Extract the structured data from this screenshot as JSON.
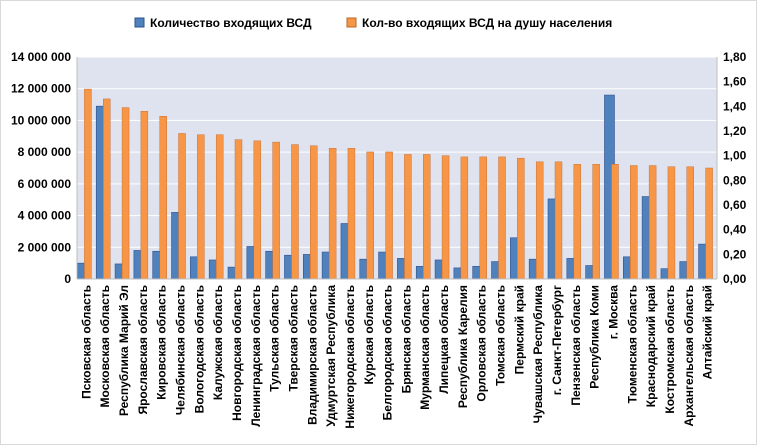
{
  "chart_data": {
    "type": "bar",
    "title": "",
    "xlabel": "",
    "ylabel": "",
    "ylim": [
      0,
      14000000
    ],
    "y2lim": [
      0,
      1.8
    ],
    "legend_position": "top",
    "grid": true,
    "y_ticks": [
      "0",
      "2 000 000",
      "4 000 000",
      "6 000 000",
      "8 000 000",
      "10 000 000",
      "12 000 000",
      "14 000 000"
    ],
    "y2_ticks": [
      "0,00",
      "0,20",
      "0,40",
      "0,60",
      "0,80",
      "1,00",
      "1,20",
      "1,40",
      "1,60",
      "1,80"
    ],
    "categories": [
      "Псковская область",
      "Московская область",
      "Республика Марий Эл",
      "Ярославская область",
      "Кировская область",
      "Челябинская область",
      "Вологодская область",
      "Калужская область",
      "Новгородская область",
      "Ленинградская область",
      "Тульская область",
      "Тверская область",
      "Владимирская область",
      "Удмуртская Республика",
      "Нижегородская область",
      "Курская область",
      "Белгородская область",
      "Брянская область",
      "Мурманская область",
      "Липецкая область",
      "Республика Карелия",
      "Орловская область",
      "Томская область",
      "Пермский край",
      "Чувашская Республика",
      "г. Санкт-Петербург",
      "Пензенская область",
      "Республика Коми",
      "г. Москва",
      "Тюменская область",
      "Краснодарский край",
      "Костромская область",
      "Архангельская область",
      "Алтайский край"
    ],
    "series": [
      {
        "name": "Количество входящих ВСД",
        "axis": "left",
        "color": "#4f81bd",
        "values": [
          1000000,
          10900000,
          950000,
          1800000,
          1750000,
          4200000,
          1400000,
          1200000,
          750000,
          2050000,
          1750000,
          1500000,
          1550000,
          1700000,
          3500000,
          1250000,
          1700000,
          1300000,
          800000,
          1200000,
          700000,
          800000,
          1100000,
          2600000,
          1250000,
          5050000,
          1300000,
          850000,
          11600000,
          1400000,
          5200000,
          650000,
          1100000,
          2200000
        ]
      },
      {
        "name": "Кол-во входящих ВСД на душу населения",
        "axis": "right",
        "color": "#f79646",
        "values": [
          1.54,
          1.46,
          1.39,
          1.36,
          1.32,
          1.18,
          1.17,
          1.17,
          1.13,
          1.12,
          1.11,
          1.09,
          1.08,
          1.06,
          1.06,
          1.03,
          1.03,
          1.01,
          1.01,
          1.0,
          0.99,
          0.99,
          0.99,
          0.98,
          0.95,
          0.95,
          0.93,
          0.93,
          0.93,
          0.92,
          0.92,
          0.91,
          0.91,
          0.9
        ]
      }
    ]
  }
}
